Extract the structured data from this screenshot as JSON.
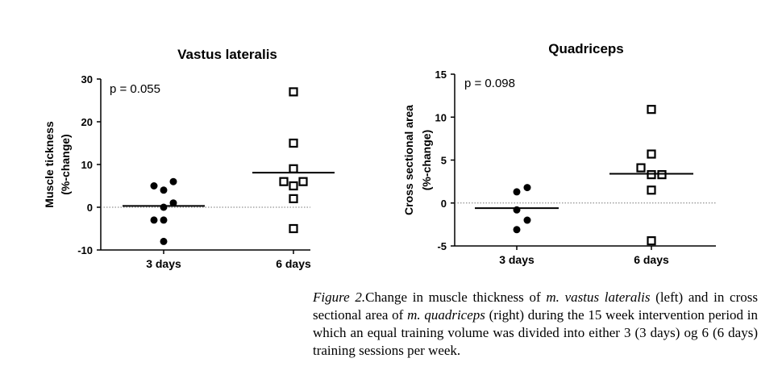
{
  "chart_data": [
    {
      "type": "scatter",
      "title": "Vastus lateralis",
      "ylabel_line1": "Muscle tickness",
      "ylabel_line2": "(%-change)",
      "xlabel": "",
      "categories": [
        "3 days",
        "6 days"
      ],
      "ylim": [
        -10,
        30
      ],
      "yticks": [
        -10,
        0,
        10,
        20,
        30
      ],
      "p_label": "p = 0.055",
      "reference_line": 0,
      "series": [
        {
          "category": "3 days",
          "marker": "filled-circle",
          "points": [
            {
              "offset": -1,
              "y": 5
            },
            {
              "offset": 1,
              "y": 6
            },
            {
              "offset": 0,
              "y": 4
            },
            {
              "offset": 1,
              "y": 1
            },
            {
              "offset": 0,
              "y": 0
            },
            {
              "offset": -1,
              "y": -3
            },
            {
              "offset": 0,
              "y": -3
            },
            {
              "offset": 0,
              "y": -8
            }
          ],
          "mean": 0.3
        },
        {
          "category": "6 days",
          "marker": "open-square",
          "points": [
            {
              "offset": 0,
              "y": 27
            },
            {
              "offset": 0,
              "y": 15
            },
            {
              "offset": 0,
              "y": 9
            },
            {
              "offset": -1,
              "y": 6
            },
            {
              "offset": 1,
              "y": 6
            },
            {
              "offset": 0,
              "y": 5
            },
            {
              "offset": 0,
              "y": 2
            },
            {
              "offset": 0,
              "y": -5
            }
          ],
          "mean": 8.1
        }
      ]
    },
    {
      "type": "scatter",
      "title": "Quadriceps",
      "ylabel_line1": "Cross sectional area",
      "ylabel_line2": "(%-change)",
      "xlabel": "",
      "categories": [
        "3 days",
        "6 days"
      ],
      "ylim": [
        -5,
        15
      ],
      "yticks": [
        -5,
        0,
        5,
        10,
        15
      ],
      "p_label": "p = 0.098",
      "reference_line": 0,
      "series": [
        {
          "category": "3 days",
          "marker": "filled-circle",
          "points": [
            {
              "offset": 1,
              "y": 1.8
            },
            {
              "offset": 0,
              "y": 1.3
            },
            {
              "offset": 0,
              "y": -0.8
            },
            {
              "offset": 1,
              "y": -2.0
            },
            {
              "offset": 0,
              "y": -3.1
            }
          ],
          "mean": -0.6
        },
        {
          "category": "6 days",
          "marker": "open-square",
          "points": [
            {
              "offset": 0,
              "y": 10.9
            },
            {
              "offset": 0,
              "y": 5.7
            },
            {
              "offset": -1,
              "y": 4.1
            },
            {
              "offset": 0,
              "y": 3.3
            },
            {
              "offset": 1,
              "y": 3.3
            },
            {
              "offset": 0,
              "y": 1.5
            },
            {
              "offset": 0,
              "y": -4.4
            }
          ],
          "mean": 3.4
        }
      ]
    }
  ],
  "caption": {
    "fig_label": "Figure 2.",
    "text1": "Change in muscle thickness of ",
    "term1": "m. vastus lateralis",
    "text2": " (left) and in cross sectional area of ",
    "term2": "m. quadriceps",
    "text3": " (right) during the 15 week intervention period in which an equal training volume was divided into either 3 (3 days) og 6 (6 days) training sessions per week."
  }
}
